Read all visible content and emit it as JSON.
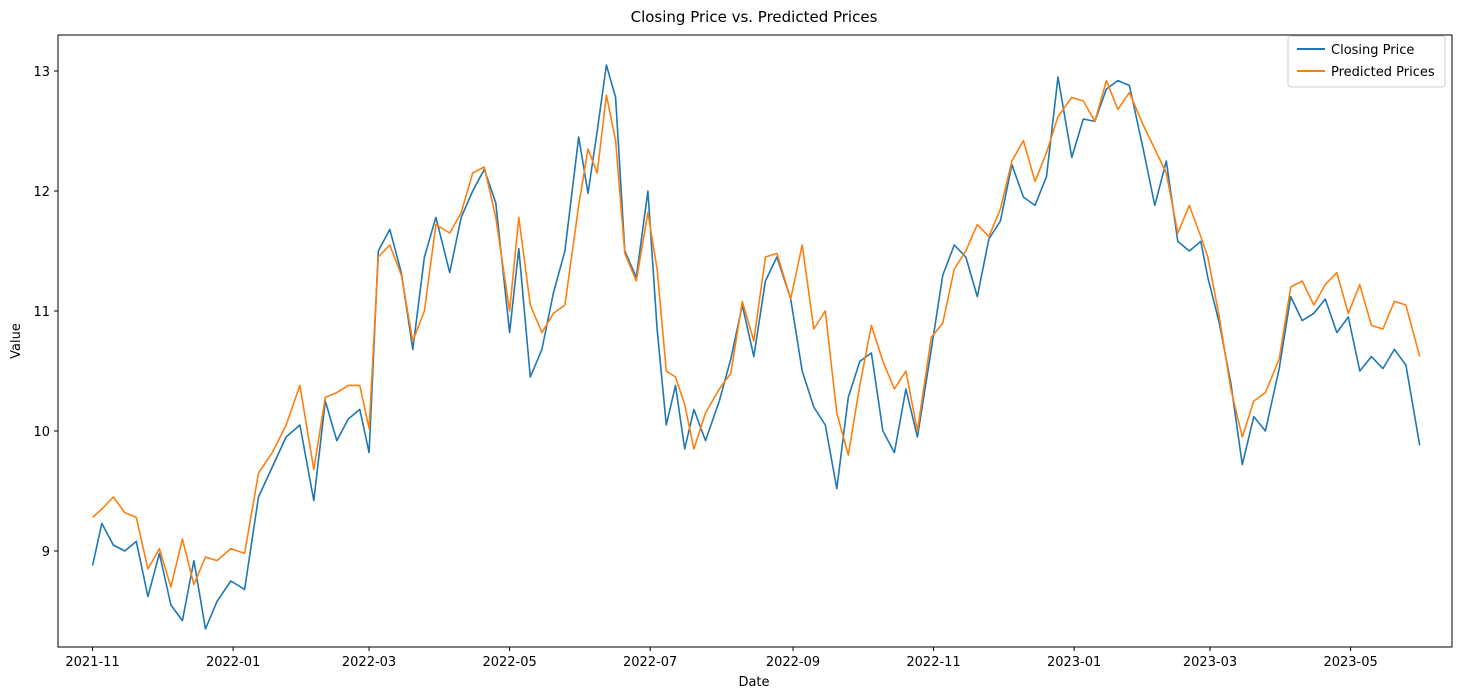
{
  "chart_data": {
    "type": "line",
    "title": "Closing Price vs. Predicted Prices",
    "xlabel": "Date",
    "ylabel": "Value",
    "xlim": [
      "2021-10-17",
      "2023-06-14"
    ],
    "ylim": [
      8.2,
      13.3
    ],
    "grid": false,
    "legend_position": "top-right",
    "x_ticks": [
      "2021-11",
      "2022-01",
      "2022-03",
      "2022-05",
      "2022-07",
      "2022-09",
      "2022-11",
      "2023-01",
      "2023-03",
      "2023-05"
    ],
    "y_ticks": [
      9,
      10,
      11,
      12,
      13
    ],
    "x": [
      "2021-11-01",
      "2021-11-05",
      "2021-11-10",
      "2021-11-15",
      "2021-11-20",
      "2021-11-25",
      "2021-11-30",
      "2021-12-05",
      "2021-12-10",
      "2021-12-15",
      "2021-12-20",
      "2021-12-25",
      "2021-12-31",
      "2022-01-06",
      "2022-01-12",
      "2022-01-18",
      "2022-01-24",
      "2022-01-30",
      "2022-02-05",
      "2022-02-10",
      "2022-02-15",
      "2022-02-20",
      "2022-02-25",
      "2022-03-01",
      "2022-03-05",
      "2022-03-10",
      "2022-03-15",
      "2022-03-20",
      "2022-03-25",
      "2022-03-30",
      "2022-04-05",
      "2022-04-10",
      "2022-04-15",
      "2022-04-20",
      "2022-04-25",
      "2022-05-01",
      "2022-05-05",
      "2022-05-10",
      "2022-05-15",
      "2022-05-20",
      "2022-05-25",
      "2022-05-31",
      "2022-06-04",
      "2022-06-08",
      "2022-06-12",
      "2022-06-16",
      "2022-06-20",
      "2022-06-25",
      "2022-06-30",
      "2022-07-04",
      "2022-07-08",
      "2022-07-12",
      "2022-07-16",
      "2022-07-20",
      "2022-07-25",
      "2022-07-31",
      "2022-08-05",
      "2022-08-10",
      "2022-08-15",
      "2022-08-20",
      "2022-08-25",
      "2022-08-31",
      "2022-09-05",
      "2022-09-10",
      "2022-09-15",
      "2022-09-20",
      "2022-09-25",
      "2022-09-30",
      "2022-10-05",
      "2022-10-10",
      "2022-10-15",
      "2022-10-20",
      "2022-10-25",
      "2022-10-31",
      "2022-11-05",
      "2022-11-10",
      "2022-11-15",
      "2022-11-20",
      "2022-11-25",
      "2022-11-30",
      "2022-12-05",
      "2022-12-10",
      "2022-12-15",
      "2022-12-20",
      "2022-12-25",
      "2022-12-31",
      "2023-01-05",
      "2023-01-10",
      "2023-01-15",
      "2023-01-20",
      "2023-01-25",
      "2023-01-31",
      "2023-02-05",
      "2023-02-10",
      "2023-02-15",
      "2023-02-20",
      "2023-02-25",
      "2023-02-28",
      "2023-03-05",
      "2023-03-10",
      "2023-03-15",
      "2023-03-20",
      "2023-03-25",
      "2023-03-31",
      "2023-04-05",
      "2023-04-10",
      "2023-04-15",
      "2023-04-20",
      "2023-04-25",
      "2023-04-30",
      "2023-05-05",
      "2023-05-10",
      "2023-05-15",
      "2023-05-20",
      "2023-05-25",
      "2023-05-31"
    ],
    "series": [
      {
        "name": "Closing Price",
        "color": "#1f77b4",
        "values": [
          8.88,
          9.23,
          9.05,
          9.0,
          9.08,
          8.62,
          8.98,
          8.55,
          8.42,
          8.92,
          8.35,
          8.58,
          8.75,
          8.68,
          9.45,
          9.7,
          9.95,
          10.05,
          9.42,
          10.25,
          9.92,
          10.1,
          10.18,
          9.82,
          11.5,
          11.68,
          11.32,
          10.68,
          11.45,
          11.78,
          11.32,
          11.78,
          12.0,
          12.18,
          11.9,
          10.82,
          11.52,
          10.45,
          10.68,
          11.15,
          11.5,
          12.45,
          11.98,
          12.5,
          13.05,
          12.78,
          11.5,
          11.28,
          12.0,
          10.85,
          10.05,
          10.38,
          9.85,
          10.18,
          9.92,
          10.25,
          10.6,
          11.05,
          10.62,
          11.25,
          11.45,
          11.1,
          10.5,
          10.2,
          10.05,
          9.52,
          10.28,
          10.58,
          10.65,
          10.0,
          9.82,
          10.35,
          9.95,
          10.68,
          11.3,
          11.55,
          11.45,
          11.12,
          11.6,
          11.75,
          12.22,
          11.95,
          11.88,
          12.12,
          12.95,
          12.28,
          12.6,
          12.58,
          12.85,
          12.92,
          12.88,
          12.35,
          11.88,
          12.25,
          11.58,
          11.5,
          11.58,
          11.28,
          10.9,
          10.4,
          9.72,
          10.12,
          10.0,
          10.52,
          11.12,
          10.92,
          10.98,
          11.1,
          10.82,
          10.95,
          10.5,
          10.62,
          10.52,
          10.68,
          10.55,
          9.88
        ]
      },
      {
        "name": "Predicted Prices",
        "color": "#ff7f0e",
        "values": [
          9.28,
          9.35,
          9.45,
          9.32,
          9.28,
          8.85,
          9.02,
          8.7,
          9.1,
          8.72,
          8.95,
          8.92,
          9.02,
          8.98,
          9.65,
          9.82,
          10.05,
          10.38,
          9.68,
          10.28,
          10.32,
          10.38,
          10.38,
          10.02,
          11.45,
          11.55,
          11.3,
          10.75,
          11.0,
          11.72,
          11.65,
          11.82,
          12.15,
          12.2,
          11.78,
          11.0,
          11.78,
          11.05,
          10.82,
          10.98,
          11.05,
          11.88,
          12.35,
          12.15,
          12.8,
          12.42,
          11.48,
          11.25,
          11.82,
          11.35,
          10.5,
          10.45,
          10.22,
          9.85,
          10.15,
          10.35,
          10.48,
          11.08,
          10.75,
          11.45,
          11.48,
          11.1,
          11.55,
          10.85,
          11.0,
          10.15,
          9.8,
          10.38,
          10.88,
          10.58,
          10.35,
          10.5,
          10.0,
          10.78,
          10.9,
          11.35,
          11.5,
          11.72,
          11.62,
          11.85,
          12.25,
          12.42,
          12.08,
          12.32,
          12.62,
          12.78,
          12.75,
          12.58,
          12.92,
          12.68,
          12.82,
          12.55,
          12.35,
          12.15,
          11.65,
          11.88,
          11.62,
          11.45,
          10.95,
          10.35,
          9.95,
          10.25,
          10.32,
          10.6,
          11.2,
          11.25,
          11.05,
          11.22,
          11.32,
          10.98,
          11.22,
          10.88,
          10.85,
          11.08,
          11.05,
          10.62
        ]
      }
    ]
  }
}
